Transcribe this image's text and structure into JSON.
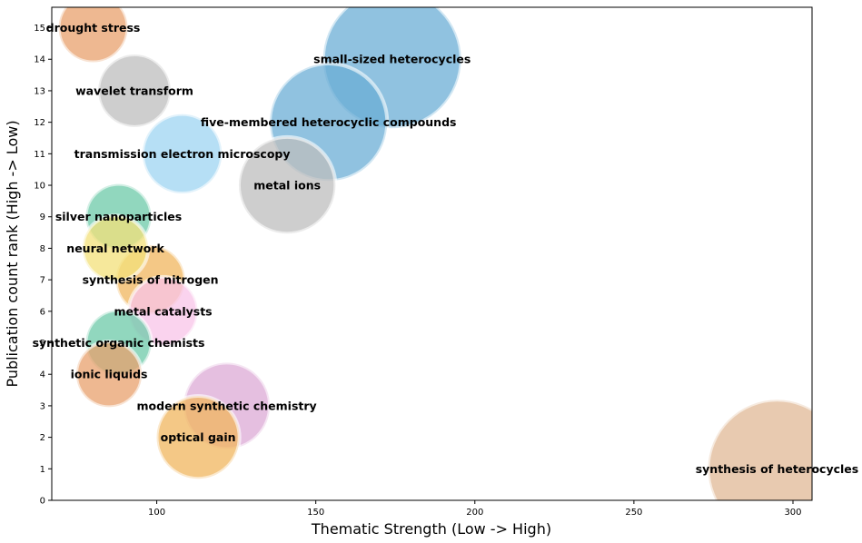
{
  "chart_data": {
    "type": "scatter",
    "variant": "bubble",
    "title": "",
    "xlabel": "Thematic Strength (Low -> High)",
    "ylabel": "Publication count rank (High -> Low)",
    "xlim": [
      67,
      306
    ],
    "ylim": [
      0,
      15.65
    ],
    "xticks": [
      100,
      150,
      200,
      250,
      300
    ],
    "yticks": [
      0,
      1,
      2,
      3,
      4,
      5,
      6,
      7,
      8,
      9,
      10,
      11,
      12,
      13,
      14,
      15
    ],
    "grid": false,
    "legend": "none",
    "points": [
      {
        "label": "drought stress",
        "x": 80,
        "y": 15,
        "size": 1.0,
        "color": "#e8a06c"
      },
      {
        "label": "small-sized heterocycles",
        "x": 174,
        "y": 14,
        "size": 2.0,
        "color": "#6baed6"
      },
      {
        "label": "wavelet transform",
        "x": 93,
        "y": 13,
        "size": 1.05,
        "color": "#bdbdbd"
      },
      {
        "label": "five-membered heterocyclic compounds",
        "x": 154,
        "y": 12,
        "size": 1.7,
        "color": "#6baed6"
      },
      {
        "label": "transmission electron microscopy",
        "x": 108,
        "y": 11,
        "size": 1.15,
        "color": "#9dd4f2"
      },
      {
        "label": "metal ions",
        "x": 141,
        "y": 10,
        "size": 1.4,
        "color": "#bdbdbd"
      },
      {
        "label": "silver nanoparticles",
        "x": 88,
        "y": 9,
        "size": 0.95,
        "color": "#6cc9a8"
      },
      {
        "label": "neural network",
        "x": 87,
        "y": 8,
        "size": 0.95,
        "color": "#f3e07a"
      },
      {
        "label": "synthesis of nitrogen",
        "x": 98,
        "y": 7,
        "size": 1.0,
        "color": "#f0b55e"
      },
      {
        "label": "metal catalysts",
        "x": 102,
        "y": 6,
        "size": 1.0,
        "color": "#f8c4e8"
      },
      {
        "label": "synthetic organic chemists",
        "x": 88,
        "y": 5,
        "size": 0.95,
        "color": "#6cc9a8"
      },
      {
        "label": "ionic liquids",
        "x": 85,
        "y": 4,
        "size": 0.95,
        "color": "#e8a06c"
      },
      {
        "label": "modern synthetic chemistry",
        "x": 122,
        "y": 3,
        "size": 1.25,
        "color": "#dcaad6"
      },
      {
        "label": "optical gain",
        "x": 113,
        "y": 2,
        "size": 1.2,
        "color": "#f0b55e"
      },
      {
        "label": "synthesis of heterocycles",
        "x": 295,
        "y": 1,
        "size": 2.0,
        "color": "#e0b896"
      }
    ]
  }
}
